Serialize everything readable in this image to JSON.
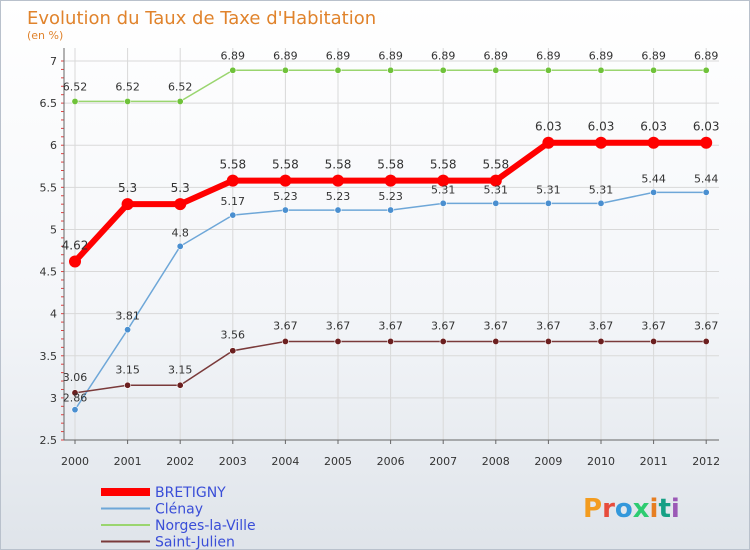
{
  "chart_data": {
    "type": "line",
    "title": "Evolution du Taux de Taxe d'Habitation",
    "subtitle": "(en %)",
    "xlabel": "",
    "ylabel": "",
    "ylim": [
      2.5,
      7
    ],
    "yticks": [
      "2.5",
      "3",
      "3.5",
      "4",
      "4.5",
      "5",
      "5.5",
      "6",
      "6.5",
      "7"
    ],
    "x": [
      "2000",
      "2001",
      "2002",
      "2003",
      "2004",
      "2005",
      "2006",
      "2007",
      "2008",
      "2009",
      "2010",
      "2011",
      "2012"
    ],
    "series": [
      {
        "name": "BRETIGNY",
        "color": "#ff0000",
        "marker": "#ff0000",
        "values": [
          4.62,
          5.3,
          5.3,
          5.58,
          5.58,
          5.58,
          5.58,
          5.58,
          5.58,
          6.03,
          6.03,
          6.03,
          6.03
        ],
        "labels": [
          "4.62",
          "5.3",
          "5.3",
          "5.58",
          "5.58",
          "5.58",
          "5.58",
          "5.58",
          "5.58",
          "6.03",
          "6.03",
          "6.03",
          "6.03"
        ]
      },
      {
        "name": "Clénay",
        "color": "#6ea7d8",
        "marker": "#4a8fd0",
        "values": [
          2.86,
          3.81,
          4.8,
          5.17,
          5.23,
          5.23,
          5.23,
          5.31,
          5.31,
          5.31,
          5.31,
          5.44,
          5.44
        ],
        "labels": [
          "2.86",
          "3.81",
          "4.8",
          "5.17",
          "5.23",
          "5.23",
          "5.23",
          "5.31",
          "5.31",
          "5.31",
          "5.31",
          "5.44",
          "5.44"
        ]
      },
      {
        "name": "Norges-la-Ville",
        "color": "#9ad56f",
        "marker": "#6fc23a",
        "values": [
          6.52,
          6.52,
          6.52,
          6.89,
          6.89,
          6.89,
          6.89,
          6.89,
          6.89,
          6.89,
          6.89,
          6.89,
          6.89
        ],
        "labels": [
          "6.52",
          "6.52",
          "6.52",
          "6.89",
          "6.89",
          "6.89",
          "6.89",
          "6.89",
          "6.89",
          "6.89",
          "6.89",
          "6.89",
          "6.89"
        ]
      },
      {
        "name": "Saint-Julien",
        "color": "#7a3a3a",
        "marker": "#6b1f1f",
        "values": [
          3.06,
          3.15,
          3.15,
          3.56,
          3.67,
          3.67,
          3.67,
          3.67,
          3.67,
          3.67,
          3.67,
          3.67,
          3.67
        ],
        "labels": [
          "3.06",
          "3.15",
          "3.15",
          "3.56",
          "3.67",
          "3.67",
          "3.67",
          "3.67",
          "3.67",
          "3.67",
          "3.67",
          "3.67",
          "3.67"
        ]
      }
    ],
    "legend_position": "bottom-left"
  },
  "watermark": {
    "text": "Proxiti",
    "letters": [
      "P",
      "r",
      "o",
      "x",
      "i",
      "t",
      "i"
    ],
    "colors": [
      "#f39c1f",
      "#e74c3c",
      "#3498db",
      "#2ecc71",
      "#e67e22",
      "#16a085",
      "#9b59b6"
    ]
  }
}
